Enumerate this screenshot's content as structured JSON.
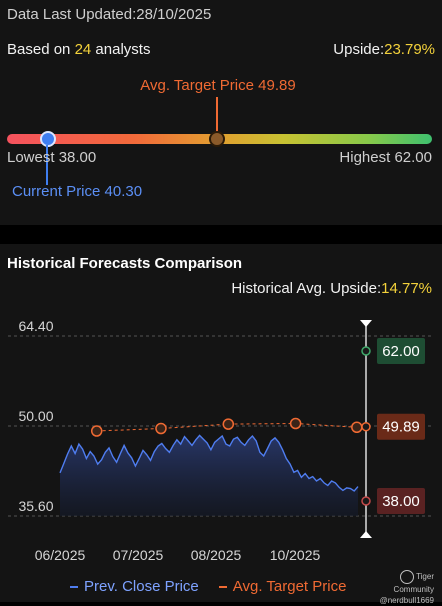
{
  "header": {
    "updated_label": "Data Last Updated:",
    "updated_value": "28/10/2025",
    "based_on_prefix": "Based on ",
    "analyst_count": "24",
    "based_on_suffix": " analysts",
    "upside_label": "Upside:",
    "upside_value": "23.79%"
  },
  "range": {
    "avg_target_text": "Avg. Target Price 49.89",
    "lowest_text": "Lowest 38.00",
    "highest_text": "Highest 62.00",
    "current_text": "Current Price 40.30",
    "lowest": 38.0,
    "highest": 62.0,
    "avg_target": 49.89,
    "current": 40.3
  },
  "history": {
    "title": "Historical Forecasts Comparison",
    "upside_label": "Historical Avg. Upside:",
    "upside_value": "14.77%"
  },
  "legend": {
    "close_label": "Prev. Close Price",
    "target_label": "Avg. Target Price"
  },
  "watermark": {
    "line1": "Tiger Community",
    "line2": "@nerdbull1669"
  },
  "colors": {
    "close_line": "#4f7df0",
    "target_line": "#f06a33",
    "high_tag": "#1e4d33",
    "target_tag": "#6a2a18",
    "low_tag": "#5a2222"
  },
  "chart_data": {
    "type": "line",
    "y_ticks": [
      "64.40",
      "50.00",
      "35.60"
    ],
    "ylim": [
      35.6,
      64.4
    ],
    "x_ticks": [
      "06/2025",
      "07/2025",
      "08/2025",
      "10/2025"
    ],
    "series": [
      {
        "name": "Prev. Close Price",
        "values": [
          42.5,
          44.0,
          45.5,
          46.8,
          45.6,
          47.1,
          46.3,
          44.8,
          45.9,
          45.2,
          43.9,
          44.6,
          45.8,
          46.5,
          45.1,
          44.2,
          45.6,
          46.9,
          45.7,
          44.9,
          43.6,
          44.8,
          46.1,
          45.4,
          44.5,
          45.9,
          46.8,
          47.2,
          46.4,
          45.8,
          46.9,
          47.8,
          47.1,
          48.3,
          47.6,
          46.9,
          47.8,
          48.5,
          47.9,
          47.3,
          46.2,
          47.4,
          47.9,
          48.4,
          47.1,
          46.8,
          47.9,
          48.2,
          47.4,
          46.9,
          47.8,
          48.4,
          47.6,
          45.8,
          45.2,
          46.4,
          47.6,
          48.1,
          47.4,
          46.2,
          44.8,
          43.9,
          42.6,
          42.9,
          41.8,
          42.4,
          41.6,
          41.9,
          41.2,
          41.6,
          40.9,
          40.5,
          41.2,
          40.9,
          40.2,
          39.7,
          40.1,
          40.0,
          39.6,
          40.3
        ]
      },
      {
        "name": "Avg. Target Price",
        "x_index": [
          0.12,
          0.33,
          0.55,
          0.77,
          0.97
        ],
        "values": [
          49.2,
          49.6,
          50.3,
          50.4,
          49.8
        ]
      }
    ],
    "current_target_tags": {
      "high": "62.00",
      "avg": "49.89",
      "low": "38.00"
    }
  }
}
